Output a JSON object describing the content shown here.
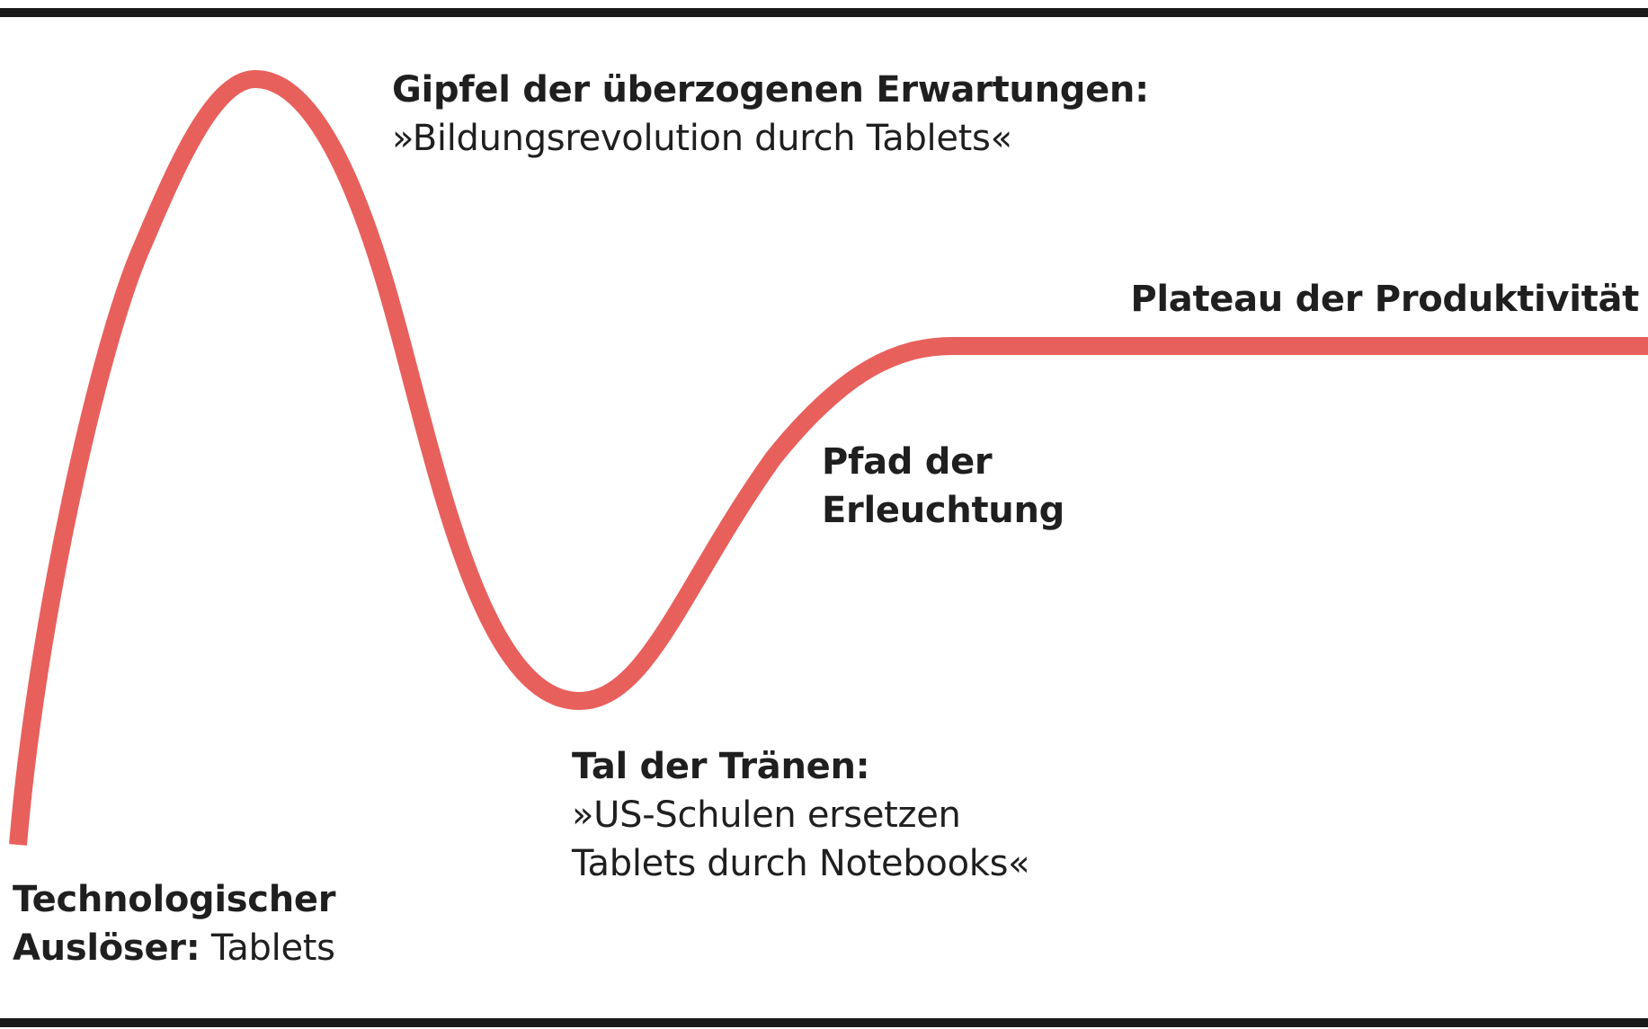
{
  "colors": {
    "curve": "#e8605c",
    "rules": "#1a1a1a",
    "text": "#1f1f1f",
    "background": "#ffffff"
  },
  "phases": {
    "peak": {
      "title": "Gipfel der überzogenen Erwartungen:",
      "line2": "»Bildungsrevolution durch Tablets«"
    },
    "plateau": {
      "title": "Plateau der Produktivität"
    },
    "slope": {
      "line1": "Pfad der",
      "line2": "Erleuchtung"
    },
    "trough": {
      "title": "Tal der Tränen:",
      "line2": "»US-Schulen ersetzen",
      "line3": "Tablets durch Notebooks«"
    },
    "trigger": {
      "line1": "Technologischer",
      "line2_bold": "Auslöser:",
      "line2_regular": " Tablets"
    }
  }
}
